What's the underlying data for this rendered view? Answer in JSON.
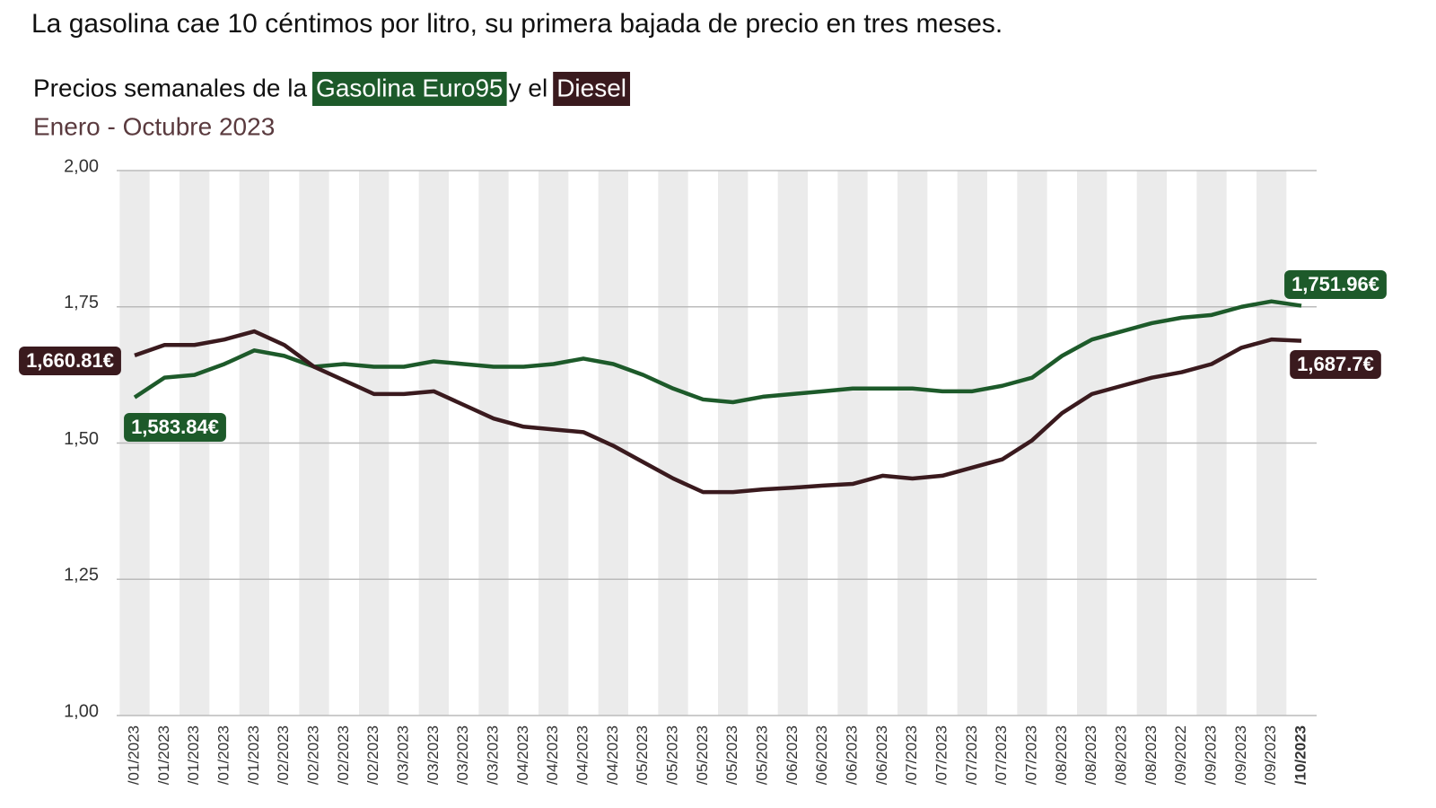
{
  "chart_data": {
    "type": "line",
    "title": "La gasolina cae 10 céntimos por litro, su primera bajada de precio en tres meses.",
    "subtitle_parts": [
      "Precios semanales de la",
      "Gasolina Euro95",
      "y el",
      "Diesel"
    ],
    "date_range": "Enero - Octubre 2023",
    "categories": [
      "/01/2023",
      "/01/2023",
      "/01/2023",
      "/01/2023",
      "/01/2023",
      "/02/2023",
      "/02/2023",
      "/02/2023",
      "/02/2023",
      "/03/2023",
      "/03/2023",
      "/03/2023",
      "/03/2023",
      "/04/2023",
      "/04/2023",
      "/04/2023",
      "/04/2023",
      "/05/2023",
      "/05/2023",
      "/05/2023",
      "/05/2023",
      "/05/2023",
      "/06/2023",
      "/06/2023",
      "/06/2023",
      "/06/2023",
      "/07/2023",
      "/07/2023",
      "/07/2023",
      "/07/2023",
      "/07/2023",
      "/08/2023",
      "/08/2023",
      "/08/2023",
      "/08/2023",
      "/09/2022",
      "/09/2023",
      "/09/2023",
      "/09/2023",
      "/10/2023"
    ],
    "series": [
      {
        "name": "Gasolina Euro95",
        "color": "#1d5a2a",
        "values": [
          1.58384,
          1.62,
          1.625,
          1.645,
          1.67,
          1.66,
          1.64,
          1.645,
          1.64,
          1.64,
          1.65,
          1.645,
          1.64,
          1.64,
          1.645,
          1.655,
          1.645,
          1.625,
          1.6,
          1.58,
          1.575,
          1.585,
          1.59,
          1.595,
          1.6,
          1.6,
          1.6,
          1.595,
          1.595,
          1.605,
          1.62,
          1.66,
          1.69,
          1.705,
          1.72,
          1.73,
          1.735,
          1.75,
          1.76,
          1.75196
        ],
        "value_labels": [
          "1,583.84€",
          null,
          null,
          null,
          null,
          null,
          null,
          null,
          null,
          null,
          null,
          null,
          null,
          null,
          null,
          null,
          null,
          null,
          null,
          null,
          null,
          null,
          null,
          null,
          null,
          null,
          null,
          null,
          null,
          null,
          null,
          null,
          null,
          null,
          null,
          null,
          null,
          null,
          null,
          "1,751.96€"
        ]
      },
      {
        "name": "Diesel",
        "color": "#3a1a1e",
        "values": [
          1.66081,
          1.68,
          1.68,
          1.69,
          1.705,
          1.68,
          1.64,
          1.615,
          1.59,
          1.59,
          1.595,
          1.57,
          1.545,
          1.53,
          1.525,
          1.52,
          1.495,
          1.465,
          1.435,
          1.41,
          1.41,
          1.415,
          1.418,
          1.422,
          1.425,
          1.44,
          1.435,
          1.44,
          1.455,
          1.47,
          1.505,
          1.555,
          1.59,
          1.605,
          1.62,
          1.63,
          1.645,
          1.675,
          1.69,
          1.6877
        ],
        "value_labels": [
          "1,660.81€",
          null,
          null,
          null,
          null,
          null,
          null,
          null,
          null,
          null,
          null,
          null,
          null,
          null,
          null,
          null,
          null,
          null,
          null,
          null,
          null,
          null,
          null,
          null,
          null,
          null,
          null,
          null,
          null,
          null,
          null,
          null,
          null,
          null,
          null,
          null,
          null,
          null,
          null,
          "1,687.7€"
        ]
      }
    ],
    "ylim": [
      1.0,
      2.0
    ],
    "yticks": [
      {
        "value": 1.0,
        "label": "1,00"
      },
      {
        "value": 1.25,
        "label": "1,25"
      },
      {
        "value": 1.5,
        "label": "1,50"
      },
      {
        "value": 1.75,
        "label": "1,75"
      },
      {
        "value": 2.0,
        "label": "2,00"
      }
    ],
    "grid": true
  }
}
